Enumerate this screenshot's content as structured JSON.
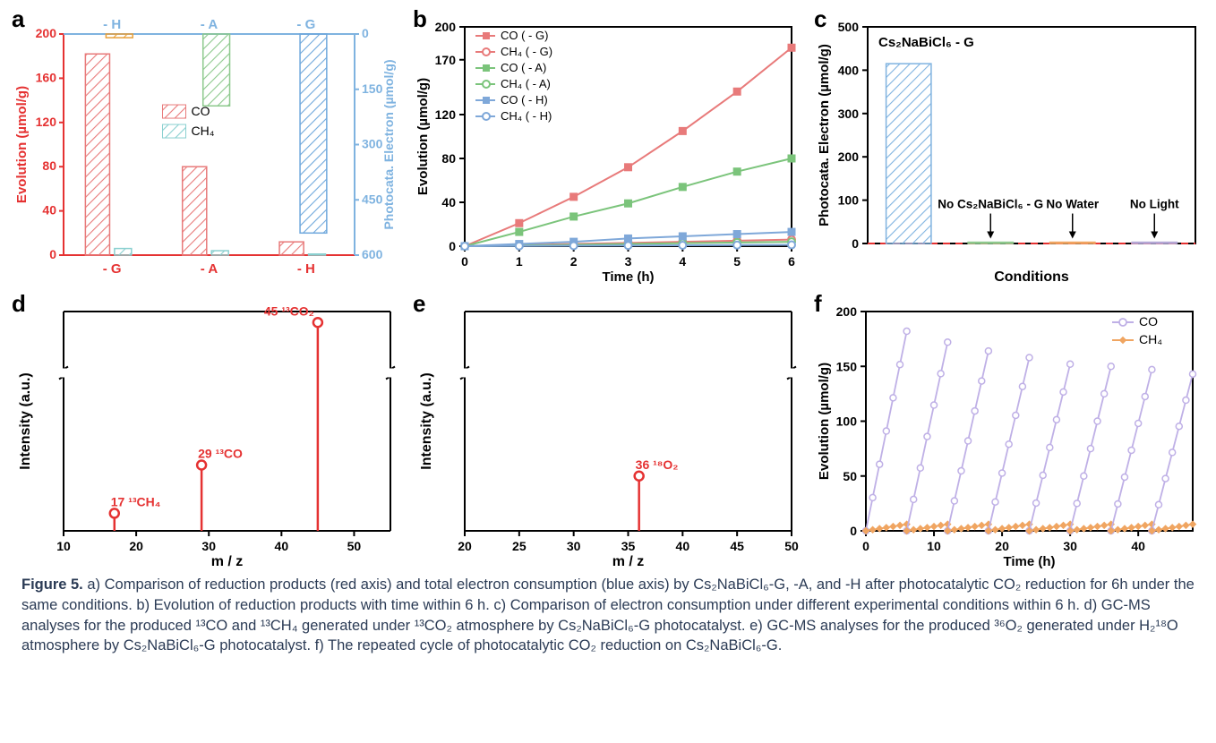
{
  "figure_label": "Figure 5.",
  "caption_parts": {
    "a": "a) Comparison of reduction products (red axis) and total electron consumption (blue axis) by Cs₂NaBiCl₆-G, -A, and -H after photocatalytic CO₂ reduction for 6h under the same conditions.",
    "b": "b) Evolution of reduction products with time within 6 h.",
    "c": "c) Comparison of electron consumption under different experimental conditions within 6 h.",
    "d": "d) GC-MS analyses for the produced ¹³CO and ¹³CH₄ generated under ¹³CO₂ atmosphere by Cs₂NaBiCl₆-G photocatalyst.",
    "e": "e) GC-MS analyses for the produced ³⁶O₂ generated under H₂¹⁸O atmosphere by Cs₂NaBiCl₆-G photocatalyst.",
    "f": "f) The repeated cycle of photocatalytic CO₂ reduction on Cs₂NaBiCl₆-G."
  },
  "panel_a": {
    "type": "bar-dual-axis",
    "top_labels": [
      "- H",
      "- A",
      "- G"
    ],
    "bottom_labels": [
      "- G",
      "- A",
      "- H"
    ],
    "left_axis": {
      "label": "Evolution (µmol/g)",
      "min": 0,
      "max": 200,
      "ticks": [
        0,
        40,
        80,
        120,
        160,
        200
      ],
      "color": "#e53232"
    },
    "right_axis": {
      "label": "Photocata. Electron (µmol/g)",
      "min": 0,
      "max": 600,
      "ticks": [
        0,
        150,
        300,
        450,
        600
      ],
      "color": "#7fb3e0",
      "reversed": true
    },
    "legend": [
      {
        "label": "CO",
        "color": "#e87a7a",
        "hatch": true
      },
      {
        "label": "CH₄",
        "color": "#8ad0d0",
        "hatch": true
      }
    ],
    "groups": [
      {
        "x": "- G",
        "CO": 182,
        "CH4": 6,
        "electron": 10,
        "electron_color": "#e8a03a"
      },
      {
        "x": "- A",
        "CO": 80,
        "CH4": 4,
        "electron": 195,
        "electron_color": "#8dc98d"
      },
      {
        "x": "- H",
        "CO": 12,
        "CH4": 1,
        "electron": 540,
        "electron_color": "#6fa8dc"
      }
    ],
    "bar_width": 0.25,
    "background": "#ffffff",
    "tick_font": 14
  },
  "panel_b": {
    "type": "line",
    "xlabel": "Time (h)",
    "ylabel": "Evolution (µmol/g)",
    "xlim": [
      0,
      6
    ],
    "ylim": [
      0,
      200
    ],
    "xticks": [
      0,
      1,
      2,
      3,
      4,
      5,
      6
    ],
    "yticks": [
      0,
      40,
      80,
      120,
      170,
      200
    ],
    "series": [
      {
        "name": "CO  ( - G)",
        "color": "#e87a7a",
        "marker": "square",
        "data": [
          [
            0,
            0
          ],
          [
            1,
            21
          ],
          [
            2,
            45
          ],
          [
            3,
            72
          ],
          [
            4,
            105
          ],
          [
            5,
            141
          ],
          [
            6,
            181
          ]
        ]
      },
      {
        "name": "CH₄ ( - G)",
        "color": "#e87a7a",
        "marker": "circle",
        "data": [
          [
            0,
            0
          ],
          [
            1,
            1
          ],
          [
            2,
            2
          ],
          [
            3,
            3
          ],
          [
            4,
            4
          ],
          [
            5,
            5
          ],
          [
            6,
            6
          ]
        ]
      },
      {
        "name": "CO  ( - A)",
        "color": "#7bc47b",
        "marker": "square",
        "data": [
          [
            0,
            0
          ],
          [
            1,
            13
          ],
          [
            2,
            27
          ],
          [
            3,
            39
          ],
          [
            4,
            54
          ],
          [
            5,
            68
          ],
          [
            6,
            80
          ]
        ]
      },
      {
        "name": "CH₄ ( - A)",
        "color": "#7bc47b",
        "marker": "circle",
        "data": [
          [
            0,
            0
          ],
          [
            1,
            0.6
          ],
          [
            2,
            1.3
          ],
          [
            3,
            2
          ],
          [
            4,
            2.8
          ],
          [
            5,
            3.4
          ],
          [
            6,
            4
          ]
        ]
      },
      {
        "name": "CO  ( - H)",
        "color": "#7fa8d9",
        "marker": "square",
        "data": [
          [
            0,
            0
          ],
          [
            1,
            2
          ],
          [
            2,
            4
          ],
          [
            3,
            7
          ],
          [
            4,
            9
          ],
          [
            5,
            11
          ],
          [
            6,
            13
          ]
        ]
      },
      {
        "name": "CH₄ ( - H)",
        "color": "#7fa8d9",
        "marker": "circle",
        "data": [
          [
            0,
            0
          ],
          [
            1,
            0.2
          ],
          [
            2,
            0.4
          ],
          [
            3,
            0.6
          ],
          [
            4,
            0.8
          ],
          [
            5,
            1
          ],
          [
            6,
            1.2
          ]
        ]
      }
    ],
    "legend_pos": "top-left",
    "font": 14
  },
  "panel_c": {
    "type": "bar",
    "xlabel": "Conditions",
    "ylabel": "Photocata. Electron (µmol/g)",
    "ylim": [
      0,
      500
    ],
    "yticks": [
      0,
      100,
      200,
      300,
      400,
      500
    ],
    "title_inside": "Cs₂NaBiCl₆ - G",
    "bars": [
      {
        "label": "",
        "value": 415,
        "color": "#7fb3e0"
      },
      {
        "label": "No Cs₂NaBiCl₆ - G",
        "value": 3,
        "color": "#8dc98d"
      },
      {
        "label": "No Water",
        "value": 3,
        "color": "#f0a561"
      },
      {
        "label": "No Light",
        "value": 3,
        "color": "#b4a7d6"
      }
    ],
    "ref_line": {
      "y": 0,
      "color": "#e53232",
      "dash": true
    },
    "bar_width": 0.55
  },
  "panel_d": {
    "type": "mass-spectrum",
    "xlabel": "m / z",
    "ylabel": "Intensity (a.u.)",
    "xlim": [
      10,
      55
    ],
    "xticks": [
      10,
      20,
      30,
      40,
      50
    ],
    "break": true,
    "peaks": [
      {
        "mz": 17,
        "h": 0.08,
        "label": "17 ¹³CH₄",
        "color": "#e53232"
      },
      {
        "mz": 29,
        "h": 0.3,
        "label": "29 ¹³CO",
        "color": "#e53232"
      },
      {
        "mz": 45,
        "h": 0.95,
        "label": "45 ¹³CO₂",
        "color": "#e53232"
      }
    ]
  },
  "panel_e": {
    "type": "mass-spectrum",
    "xlabel": "m / z",
    "ylabel": "Intensity (a.u.)",
    "xlim": [
      20,
      50
    ],
    "xticks": [
      20,
      25,
      30,
      35,
      40,
      45,
      50
    ],
    "break": true,
    "peaks": [
      {
        "mz": 36,
        "h": 0.25,
        "label": "36 ¹⁸O₂",
        "color": "#e53232"
      }
    ]
  },
  "panel_f": {
    "type": "line",
    "xlabel": "Time (h)",
    "ylabel": "Evolution (µmol/g)",
    "xlim": [
      0,
      48
    ],
    "ylim": [
      0,
      200
    ],
    "xticks": [
      0,
      10,
      20,
      30,
      40
    ],
    "yticks": [
      0,
      50,
      100,
      150,
      200
    ],
    "legend": [
      {
        "name": "CO",
        "color": "#bfb0e6",
        "marker": "circle"
      },
      {
        "name": "CH₄",
        "color": "#f0a561",
        "marker": "diamond"
      }
    ],
    "cycles": 8,
    "cycle_len": 6,
    "co_peaks": [
      182,
      172,
      164,
      158,
      152,
      150,
      147,
      143
    ],
    "ch4_peak": 6
  },
  "colors": {
    "axis": "#000",
    "text": "#000"
  }
}
